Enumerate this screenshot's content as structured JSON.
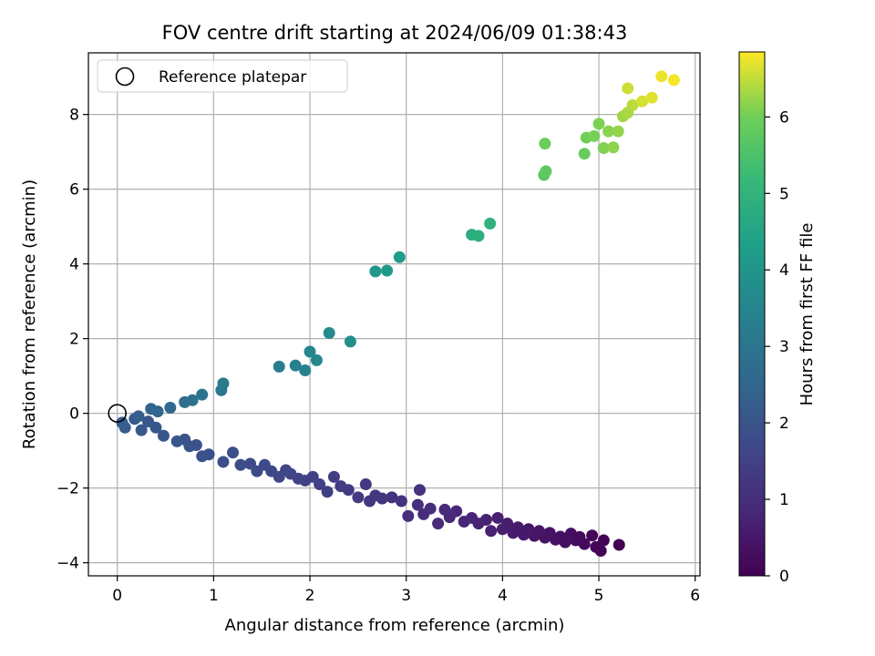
{
  "chart_data": {
    "type": "scatter",
    "title": "FOV centre drift starting at 2024/06/09 01:38:43",
    "xlabel": "Angular distance from reference (arcmin)",
    "ylabel": "Rotation from reference (arcmin)",
    "xlim": [
      -0.3,
      6.05
    ],
    "ylim": [
      -4.35,
      9.65
    ],
    "xticks": [
      0,
      1,
      2,
      3,
      4,
      5,
      6
    ],
    "yticks": [
      -4,
      -2,
      0,
      2,
      4,
      6,
      8
    ],
    "xtick_labels": [
      "0",
      "1",
      "2",
      "3",
      "4",
      "5",
      "6"
    ],
    "ytick_labels": [
      "−4",
      "−2",
      "0",
      "2",
      "4",
      "6",
      "8"
    ],
    "grid": true,
    "legend": {
      "placement": "upper-left",
      "entries": [
        "Reference platepar"
      ]
    },
    "reference_point": {
      "x": 0,
      "y": 0
    },
    "colorbar": {
      "label": "Hours from first FF file",
      "range": [
        0,
        6.85
      ],
      "ticks": [
        0,
        1,
        2,
        3,
        4,
        5,
        6
      ],
      "tick_labels": [
        "0",
        "1",
        "2",
        "3",
        "4",
        "5",
        "6"
      ],
      "colormap": "viridis"
    },
    "series": [
      {
        "values": [
          {
            "x": 5.21,
            "y": -3.52,
            "t": 0.02
          },
          {
            "x": 5.02,
            "y": -3.68,
            "t": 0.05
          },
          {
            "x": 5.05,
            "y": -3.4,
            "t": 0.08
          },
          {
            "x": 4.97,
            "y": -3.58,
            "t": 0.11
          },
          {
            "x": 4.93,
            "y": -3.27,
            "t": 0.14
          },
          {
            "x": 4.85,
            "y": -3.5,
            "t": 0.17
          },
          {
            "x": 4.8,
            "y": -3.31,
            "t": 0.2
          },
          {
            "x": 4.76,
            "y": -3.4,
            "t": 0.23
          },
          {
            "x": 4.71,
            "y": -3.22,
            "t": 0.26
          },
          {
            "x": 4.65,
            "y": -3.45,
            "t": 0.29
          },
          {
            "x": 4.6,
            "y": -3.3,
            "t": 0.32
          },
          {
            "x": 4.55,
            "y": -3.38,
            "t": 0.35
          },
          {
            "x": 4.49,
            "y": -3.2,
            "t": 0.38
          },
          {
            "x": 4.44,
            "y": -3.33,
            "t": 0.41
          },
          {
            "x": 4.38,
            "y": -3.15,
            "t": 0.44
          },
          {
            "x": 4.33,
            "y": -3.28,
            "t": 0.47
          },
          {
            "x": 4.27,
            "y": -3.1,
            "t": 0.5
          },
          {
            "x": 4.22,
            "y": -3.25,
            "t": 0.53
          },
          {
            "x": 4.16,
            "y": -3.05,
            "t": 0.56
          },
          {
            "x": 4.11,
            "y": -3.2,
            "t": 0.59
          },
          {
            "x": 4.05,
            "y": -2.95,
            "t": 0.62
          },
          {
            "x": 4.0,
            "y": -3.1,
            "t": 0.65
          },
          {
            "x": 3.95,
            "y": -2.8,
            "t": 0.68
          },
          {
            "x": 3.88,
            "y": -3.15,
            "t": 0.71
          },
          {
            "x": 3.83,
            "y": -2.85,
            "t": 0.74
          },
          {
            "x": 3.75,
            "y": -2.95,
            "t": 0.77
          },
          {
            "x": 3.68,
            "y": -2.8,
            "t": 0.8
          },
          {
            "x": 3.6,
            "y": -2.9,
            "t": 0.83
          },
          {
            "x": 3.52,
            "y": -2.62,
            "t": 0.86
          },
          {
            "x": 3.45,
            "y": -2.78,
            "t": 0.89
          },
          {
            "x": 3.4,
            "y": -2.58,
            "t": 0.92
          },
          {
            "x": 3.33,
            "y": -2.95,
            "t": 0.95
          },
          {
            "x": 3.25,
            "y": -2.55,
            "t": 0.98
          },
          {
            "x": 3.18,
            "y": -2.7,
            "t": 1.01
          },
          {
            "x": 3.12,
            "y": -2.45,
            "t": 1.04
          },
          {
            "x": 3.02,
            "y": -2.75,
            "t": 1.07
          },
          {
            "x": 3.14,
            "y": -2.05,
            "t": 1.1
          },
          {
            "x": 2.95,
            "y": -2.35,
            "t": 1.13
          },
          {
            "x": 2.85,
            "y": -2.25,
            "t": 1.16
          },
          {
            "x": 2.75,
            "y": -2.28,
            "t": 1.19
          },
          {
            "x": 2.68,
            "y": -2.2,
            "t": 1.22
          },
          {
            "x": 2.62,
            "y": -2.35,
            "t": 1.25
          },
          {
            "x": 2.58,
            "y": -1.9,
            "t": 1.28
          },
          {
            "x": 2.5,
            "y": -2.25,
            "t": 1.31
          },
          {
            "x": 2.4,
            "y": -2.05,
            "t": 1.34
          },
          {
            "x": 2.32,
            "y": -1.95,
            "t": 1.37
          },
          {
            "x": 2.25,
            "y": -1.7,
            "t": 1.4
          },
          {
            "x": 2.18,
            "y": -2.1,
            "t": 1.43
          },
          {
            "x": 2.1,
            "y": -1.9,
            "t": 1.46
          },
          {
            "x": 2.03,
            "y": -1.7,
            "t": 1.49
          },
          {
            "x": 1.95,
            "y": -1.8,
            "t": 1.52
          },
          {
            "x": 1.88,
            "y": -1.75,
            "t": 1.55
          },
          {
            "x": 1.8,
            "y": -1.62,
            "t": 1.58
          },
          {
            "x": 1.75,
            "y": -1.52,
            "t": 1.61
          },
          {
            "x": 1.68,
            "y": -1.7,
            "t": 1.64
          },
          {
            "x": 1.6,
            "y": -1.55,
            "t": 1.67
          },
          {
            "x": 1.53,
            "y": -1.38,
            "t": 1.7
          },
          {
            "x": 1.45,
            "y": -1.55,
            "t": 1.73
          },
          {
            "x": 1.38,
            "y": -1.35,
            "t": 1.76
          },
          {
            "x": 1.28,
            "y": -1.38,
            "t": 1.79
          },
          {
            "x": 1.2,
            "y": -1.05,
            "t": 1.82
          },
          {
            "x": 1.1,
            "y": -1.3,
            "t": 1.85
          },
          {
            "x": 0.95,
            "y": -1.1,
            "t": 1.88
          },
          {
            "x": 0.88,
            "y": -1.15,
            "t": 1.91
          },
          {
            "x": 0.82,
            "y": -0.85,
            "t": 1.94
          },
          {
            "x": 0.75,
            "y": -0.88,
            "t": 1.97
          },
          {
            "x": 0.7,
            "y": -0.7,
            "t": 2.0
          },
          {
            "x": 0.62,
            "y": -0.75,
            "t": 2.03
          },
          {
            "x": 0.48,
            "y": -0.6,
            "t": 2.06
          },
          {
            "x": 0.4,
            "y": -0.38,
            "t": 2.09
          },
          {
            "x": 0.32,
            "y": -0.22,
            "t": 2.12
          },
          {
            "x": 0.25,
            "y": -0.45,
            "t": 2.15
          },
          {
            "x": 0.18,
            "y": -0.15,
            "t": 2.18
          },
          {
            "x": 0.08,
            "y": -0.38,
            "t": 2.22
          },
          {
            "x": 0.05,
            "y": -0.25,
            "t": 2.26
          },
          {
            "x": 0.22,
            "y": -0.08,
            "t": 2.3
          },
          {
            "x": 0.35,
            "y": 0.12,
            "t": 2.45
          },
          {
            "x": 0.42,
            "y": 0.05,
            "t": 2.55
          },
          {
            "x": 0.55,
            "y": 0.15,
            "t": 2.65
          },
          {
            "x": 0.7,
            "y": 0.3,
            "t": 2.75
          },
          {
            "x": 0.78,
            "y": 0.35,
            "t": 2.85
          },
          {
            "x": 0.88,
            "y": 0.5,
            "t": 2.95
          },
          {
            "x": 1.08,
            "y": 0.62,
            "t": 3.05
          },
          {
            "x": 1.1,
            "y": 0.8,
            "t": 3.15
          },
          {
            "x": 1.68,
            "y": 1.25,
            "t": 3.25
          },
          {
            "x": 1.85,
            "y": 1.28,
            "t": 3.35
          },
          {
            "x": 1.95,
            "y": 1.15,
            "t": 3.45
          },
          {
            "x": 2.0,
            "y": 1.65,
            "t": 3.55
          },
          {
            "x": 2.07,
            "y": 1.42,
            "t": 3.62
          },
          {
            "x": 2.2,
            "y": 2.15,
            "t": 3.7
          },
          {
            "x": 2.42,
            "y": 1.92,
            "t": 3.78
          },
          {
            "x": 2.68,
            "y": 3.8,
            "t": 4.05
          },
          {
            "x": 2.8,
            "y": 3.82,
            "t": 4.15
          },
          {
            "x": 2.93,
            "y": 4.18,
            "t": 4.25
          },
          {
            "x": 3.68,
            "y": 4.78,
            "t": 4.78
          },
          {
            "x": 3.75,
            "y": 4.75,
            "t": 4.85
          },
          {
            "x": 3.87,
            "y": 5.08,
            "t": 4.95
          },
          {
            "x": 4.43,
            "y": 6.38,
            "t": 5.72
          },
          {
            "x": 4.45,
            "y": 6.48,
            "t": 5.78
          },
          {
            "x": 4.44,
            "y": 7.22,
            "t": 5.95
          },
          {
            "x": 4.85,
            "y": 6.95,
            "t": 5.9
          },
          {
            "x": 4.87,
            "y": 7.38,
            "t": 6.0
          },
          {
            "x": 4.95,
            "y": 7.42,
            "t": 6.05
          },
          {
            "x": 5.0,
            "y": 7.75,
            "t": 6.08
          },
          {
            "x": 5.05,
            "y": 7.1,
            "t": 6.1
          },
          {
            "x": 5.1,
            "y": 7.55,
            "t": 6.15
          },
          {
            "x": 5.15,
            "y": 7.12,
            "t": 6.18
          },
          {
            "x": 5.2,
            "y": 7.55,
            "t": 6.22
          },
          {
            "x": 5.25,
            "y": 7.95,
            "t": 6.3
          },
          {
            "x": 5.3,
            "y": 8.05,
            "t": 6.35
          },
          {
            "x": 5.35,
            "y": 8.25,
            "t": 6.45
          },
          {
            "x": 5.3,
            "y": 8.7,
            "t": 6.55
          },
          {
            "x": 5.45,
            "y": 8.35,
            "t": 6.6
          },
          {
            "x": 5.55,
            "y": 8.45,
            "t": 6.68
          },
          {
            "x": 5.65,
            "y": 9.02,
            "t": 6.75
          },
          {
            "x": 5.78,
            "y": 8.92,
            "t": 6.8
          }
        ]
      }
    ]
  }
}
